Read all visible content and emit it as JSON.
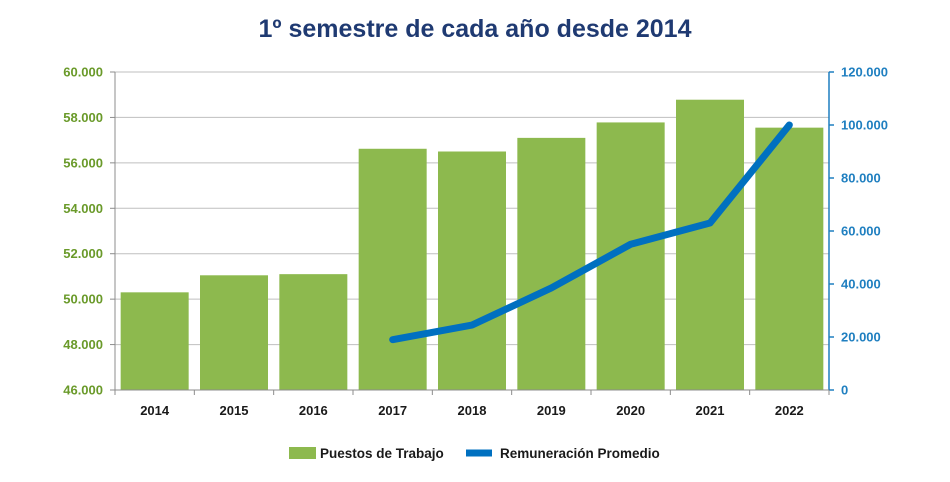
{
  "chart_data": {
    "type": "bar+line",
    "title": "1º semestre de cada año desde 2014",
    "categories": [
      "2014",
      "2015",
      "2016",
      "2017",
      "2018",
      "2019",
      "2020",
      "2021",
      "2022"
    ],
    "series": [
      {
        "name": "Puestos de Trabajo",
        "type": "bar",
        "axis": "left",
        "color": "#8db94e",
        "values": [
          50300,
          51050,
          51100,
          56620,
          56500,
          57100,
          57780,
          58780,
          57550
        ]
      },
      {
        "name": "Remuneración Promedio",
        "type": "line",
        "axis": "right",
        "color": "#0070c0",
        "values": [
          null,
          null,
          null,
          19000,
          24500,
          38500,
          55000,
          63000,
          100000
        ]
      }
    ],
    "y_left": {
      "ylim": [
        46000,
        60000
      ],
      "ticks": [
        46000,
        48000,
        50000,
        52000,
        54000,
        56000,
        58000,
        60000
      ],
      "tick_labels": [
        "46.000",
        "48.000",
        "50.000",
        "52.000",
        "54.000",
        "56.000",
        "58.000",
        "60.000"
      ],
      "color": "#6a9a2a"
    },
    "y_right": {
      "ylim": [
        0,
        120000
      ],
      "ticks": [
        0,
        20000,
        40000,
        60000,
        80000,
        100000,
        120000
      ],
      "tick_labels": [
        "0",
        "20.000",
        "40.000",
        "60.000",
        "80.000",
        "100.000",
        "120.000"
      ],
      "color": "#1f7fc0"
    },
    "grid": true,
    "legend_position": "bottom",
    "title_color": "#1f3a72"
  }
}
